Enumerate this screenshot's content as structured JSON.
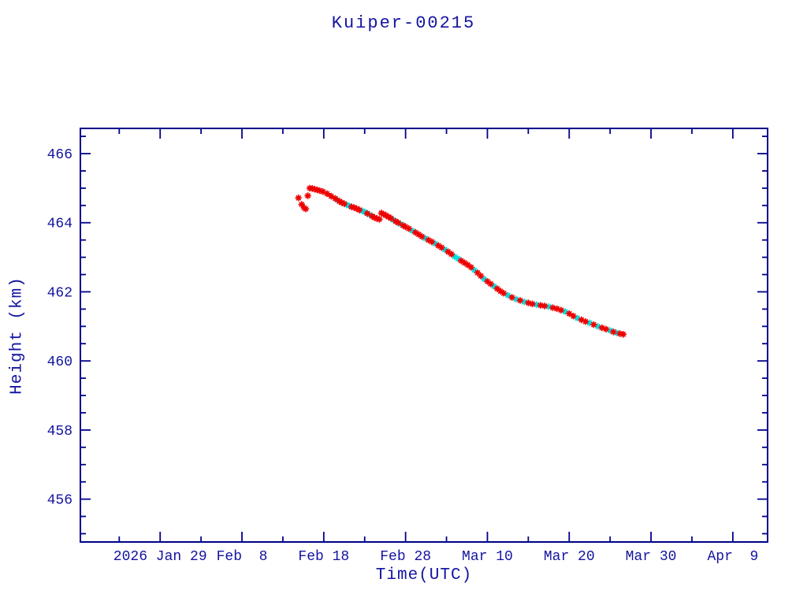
{
  "chart_data": {
    "type": "line",
    "title": "Kuiper-00215",
    "xlabel": "Time(UTC)",
    "ylabel": "Height (km)",
    "x_unit": "days since 2026 Feb 8 (UTC)",
    "x_range_days": [
      -19.75,
      64.25
    ],
    "y_range": [
      454.76,
      466.73
    ],
    "x_major_ticks": [
      {
        "d": -10,
        "label": "2026 Jan 29"
      },
      {
        "d": 0,
        "label": "Feb  8"
      },
      {
        "d": 10,
        "label": "Feb 18"
      },
      {
        "d": 20,
        "label": "Feb 28"
      },
      {
        "d": 30,
        "label": "Mar 10"
      },
      {
        "d": 40,
        "label": "Mar 20"
      },
      {
        "d": 50,
        "label": "Mar 30"
      },
      {
        "d": 60,
        "label": "Apr  9"
      }
    ],
    "x_minor_ticks_days": [
      -15,
      -5,
      5,
      15,
      25,
      35,
      45,
      55
    ],
    "y_major_ticks": [
      {
        "v": 466,
        "label": "466"
      },
      {
        "v": 464,
        "label": "464"
      },
      {
        "v": 462,
        "label": "462"
      },
      {
        "v": 460,
        "label": "460"
      },
      {
        "v": 458,
        "label": "458"
      },
      {
        "v": 456,
        "label": "456"
      }
    ],
    "y_minor_step": 0.5,
    "grid": false,
    "legend": "none",
    "colors": {
      "line": "#00008b",
      "marker_primary": "#ee0000",
      "marker_secondary": "#00dddd",
      "axis": "#00008b",
      "text": "#1414a0"
    },
    "marker": "asterisk",
    "points": [
      [
        6.9,
        464.72,
        "r"
      ],
      [
        7.3,
        464.53,
        "r"
      ],
      [
        7.6,
        464.43,
        "r"
      ],
      [
        7.8,
        464.4,
        "r"
      ],
      [
        8.05,
        464.78,
        "r"
      ],
      [
        8.3,
        465.0,
        "r"
      ],
      [
        8.6,
        464.99,
        "r"
      ],
      [
        8.9,
        464.97,
        "r"
      ],
      [
        9.2,
        464.95,
        "r"
      ],
      [
        9.5,
        464.93,
        "r"
      ],
      [
        9.9,
        464.9,
        "r"
      ],
      [
        10.4,
        464.84,
        "r"
      ],
      [
        10.9,
        464.77,
        "r"
      ],
      [
        11.4,
        464.7,
        "r"
      ],
      [
        11.65,
        464.66,
        "c"
      ],
      [
        11.9,
        464.62,
        "r"
      ],
      [
        12.2,
        464.58,
        "r"
      ],
      [
        12.5,
        464.55,
        "r"
      ],
      [
        12.8,
        464.52,
        "c"
      ],
      [
        13.1,
        464.49,
        "c"
      ],
      [
        13.4,
        464.46,
        "r"
      ],
      [
        13.7,
        464.44,
        "r"
      ],
      [
        14.0,
        464.41,
        "r"
      ],
      [
        14.35,
        464.37,
        "r"
      ],
      [
        14.7,
        464.34,
        "c"
      ],
      [
        15.0,
        464.31,
        "c"
      ],
      [
        15.3,
        464.27,
        "r"
      ],
      [
        15.6,
        464.23,
        "c"
      ],
      [
        15.9,
        464.19,
        "r"
      ],
      [
        16.2,
        464.15,
        "r"
      ],
      [
        16.5,
        464.12,
        "r"
      ],
      [
        16.8,
        464.1,
        "r"
      ],
      [
        17.05,
        464.28,
        "r"
      ],
      [
        17.3,
        464.25,
        "r"
      ],
      [
        17.6,
        464.21,
        "r"
      ],
      [
        17.9,
        464.17,
        "r"
      ],
      [
        18.2,
        464.13,
        "r"
      ],
      [
        18.5,
        464.08,
        "c"
      ],
      [
        18.8,
        464.04,
        "r"
      ],
      [
        19.1,
        464.0,
        "r"
      ],
      [
        19.4,
        463.96,
        "c"
      ],
      [
        19.7,
        463.92,
        "r"
      ],
      [
        20.0,
        463.88,
        "r"
      ],
      [
        20.4,
        463.83,
        "r"
      ],
      [
        20.8,
        463.77,
        "c"
      ],
      [
        21.2,
        463.72,
        "r"
      ],
      [
        21.6,
        463.66,
        "r"
      ],
      [
        22.0,
        463.6,
        "r"
      ],
      [
        22.4,
        463.55,
        "c"
      ],
      [
        22.8,
        463.5,
        "r"
      ],
      [
        23.2,
        463.45,
        "r"
      ],
      [
        23.6,
        463.4,
        "c"
      ],
      [
        24.0,
        463.34,
        "r"
      ],
      [
        24.4,
        463.28,
        "r"
      ],
      [
        24.8,
        463.22,
        "c"
      ],
      [
        25.2,
        463.16,
        "r"
      ],
      [
        25.6,
        463.09,
        "r"
      ],
      [
        26.0,
        463.02,
        "c"
      ],
      [
        26.4,
        462.96,
        "c"
      ],
      [
        26.8,
        462.9,
        "r"
      ],
      [
        27.2,
        462.84,
        "r"
      ],
      [
        27.6,
        462.78,
        "r"
      ],
      [
        28.0,
        462.71,
        "r"
      ],
      [
        28.4,
        462.63,
        "c"
      ],
      [
        28.8,
        462.55,
        "r"
      ],
      [
        29.2,
        462.46,
        "r"
      ],
      [
        29.6,
        462.37,
        "c"
      ],
      [
        30.0,
        462.3,
        "r"
      ],
      [
        30.4,
        462.23,
        "r"
      ],
      [
        30.8,
        462.16,
        "c"
      ],
      [
        31.2,
        462.09,
        "r"
      ],
      [
        31.6,
        462.02,
        "r"
      ],
      [
        32.0,
        461.96,
        "r"
      ],
      [
        32.5,
        461.9,
        "c"
      ],
      [
        33.0,
        461.84,
        "r"
      ],
      [
        33.5,
        461.79,
        "c"
      ],
      [
        34.0,
        461.75,
        "r"
      ],
      [
        34.5,
        461.71,
        "c"
      ],
      [
        35.0,
        461.68,
        "r"
      ],
      [
        35.5,
        461.65,
        "r"
      ],
      [
        36.0,
        461.63,
        "c"
      ],
      [
        36.5,
        461.61,
        "r"
      ],
      [
        37.0,
        461.59,
        "r"
      ],
      [
        37.5,
        461.57,
        "c"
      ],
      [
        38.0,
        461.54,
        "r"
      ],
      [
        38.5,
        461.51,
        "r"
      ],
      [
        39.0,
        461.47,
        "r"
      ],
      [
        39.5,
        461.43,
        "c"
      ],
      [
        40.0,
        461.37,
        "r"
      ],
      [
        40.5,
        461.3,
        "r"
      ],
      [
        41.0,
        461.24,
        "c"
      ],
      [
        41.5,
        461.19,
        "r"
      ],
      [
        42.0,
        461.14,
        "r"
      ],
      [
        42.5,
        461.1,
        "c"
      ],
      [
        43.0,
        461.05,
        "r"
      ],
      [
        43.5,
        461.0,
        "c"
      ],
      [
        44.0,
        460.96,
        "r"
      ],
      [
        44.5,
        460.92,
        "r"
      ],
      [
        45.0,
        460.88,
        "c"
      ],
      [
        45.4,
        460.84,
        "r"
      ],
      [
        45.8,
        460.81,
        "c"
      ],
      [
        46.2,
        460.79,
        "r"
      ],
      [
        46.6,
        460.77,
        "r"
      ]
    ]
  }
}
